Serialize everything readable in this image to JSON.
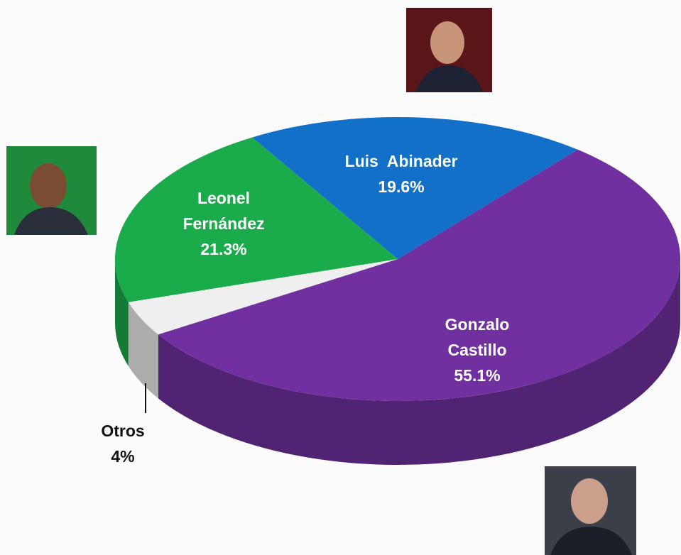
{
  "chart_data": {
    "type": "pie",
    "categories": [
      "Luis  Abinader",
      "Gonzalo Castillo",
      "Otros",
      "Leonel Fernández"
    ],
    "values": [
      19.6,
      55.1,
      4,
      21.3
    ],
    "value_labels": [
      "19.6%",
      "55.1%",
      "4%",
      "21.3%"
    ],
    "colors": [
      "#1370c8",
      "#7030a0",
      "#efefef",
      "#1aab4b"
    ]
  }
}
